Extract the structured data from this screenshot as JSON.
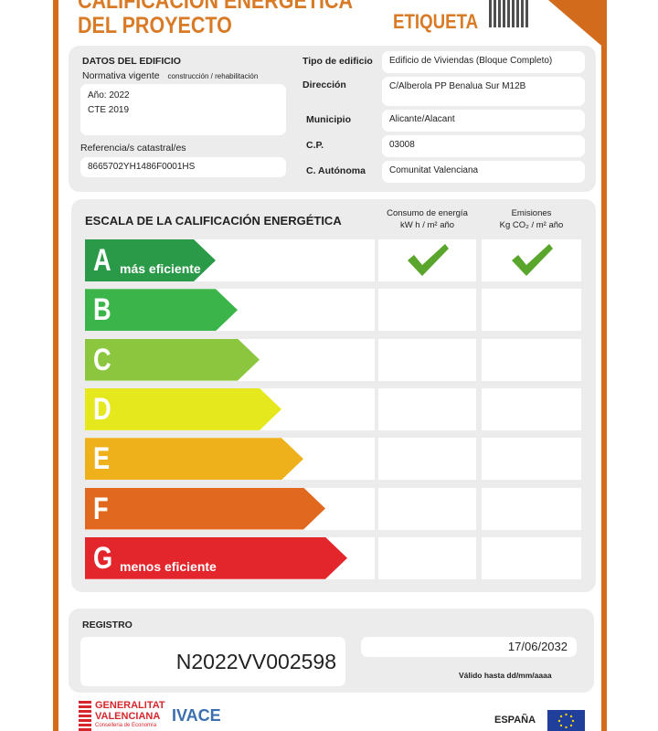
{
  "header": {
    "title_line1": "CALIFICACIÓN ENERGÉTICA",
    "title_line2": "DEL PROYECTO",
    "label": "ETIQUETA"
  },
  "building": {
    "section_title": "DATOS DEL EDIFICIO",
    "normativa_label": "Normativa vigente",
    "normativa_sub": "construcción / rehabilitación",
    "year": "Año: 2022",
    "standard": "CTE 2019",
    "catastral_label": "Referencia/s catastral/es",
    "catastral_value": "8665702YH1486F0001HS",
    "fields": [
      {
        "label": "Tipo de edificio",
        "value": "Edificio de Viviendas (Bloque Completo)"
      },
      {
        "label": "Dirección",
        "value": "C/Alberola PP Benalua Sur M12B"
      },
      {
        "label": "Municipio",
        "value": "Alicante/Alacant"
      },
      {
        "label": "C.P.",
        "value": "03008"
      },
      {
        "label": "C. Autónoma",
        "value": "Comunitat Valenciana"
      }
    ]
  },
  "scale": {
    "title": "ESCALA DE LA CALIFICACIÓN ENERGÉTICA",
    "col1": {
      "title": "Consumo de energía",
      "unit": "kW h / m² año"
    },
    "col2": {
      "title": "Emisiones",
      "unit": "Kg CO₂ / m² año"
    },
    "classes": [
      {
        "letter": "A",
        "text": "más eficiente",
        "color": "#2a9a48"
      },
      {
        "letter": "B",
        "text": "",
        "color": "#3bb54a"
      },
      {
        "letter": "C",
        "text": "",
        "color": "#8cc63f"
      },
      {
        "letter": "D",
        "text": "",
        "color": "#e4e81c"
      },
      {
        "letter": "E",
        "text": "",
        "color": "#efb11b"
      },
      {
        "letter": "F",
        "text": "",
        "color": "#e1681f"
      },
      {
        "letter": "G",
        "text": "menos eficiente",
        "color": "#e2262b"
      }
    ],
    "energy_rating": "A",
    "emissions_rating": "A"
  },
  "registro": {
    "title": "REGISTRO",
    "number": "N2022VV002598",
    "valid_date": "17/06/2032",
    "valid_label": "Válido hasta dd/mm/aaaa"
  },
  "footer": {
    "gv_line1": "GENERALITAT",
    "gv_line2": "VALENCIANA",
    "gv_line3": "Conselleria de Economía",
    "ivace": "IVACE",
    "espana": "ESPAÑA"
  }
}
